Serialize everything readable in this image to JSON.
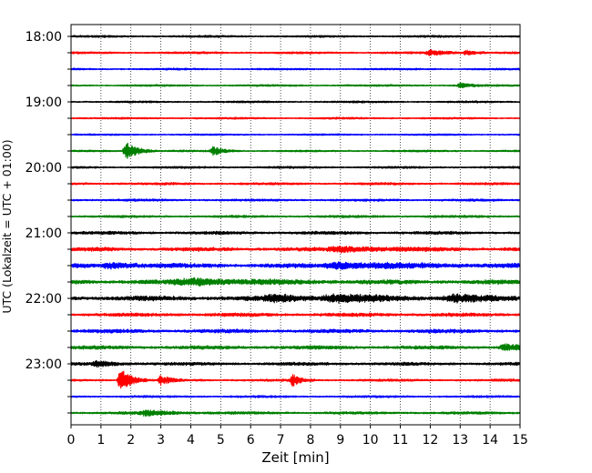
{
  "chart_data": {
    "type": "line",
    "title": "",
    "xlabel": "Zeit  [min]",
    "ylabel": "UTC (Lokalzeit = UTC + 01:00)",
    "xlim": [
      0,
      15
    ],
    "x_ticks": [
      "0",
      "1",
      "2",
      "3",
      "4",
      "5",
      "6",
      "7",
      "8",
      "9",
      "10",
      "11",
      "12",
      "13",
      "14",
      "15"
    ],
    "y_tick_labels": [
      "18:00",
      "19:00",
      "20:00",
      "21:00",
      "22:00",
      "23:00"
    ],
    "grid": "vertical dotted",
    "legend": "none",
    "trace_interval_min": 15,
    "trace_colors": [
      "#000000",
      "#ff0000",
      "#0000ff",
      "#008000"
    ],
    "traces": [
      {
        "start": "18:00",
        "color": "#000000",
        "noise": 0.9
      },
      {
        "start": "18:15",
        "color": "#ff0000",
        "noise": 0.9,
        "events": [
          {
            "t": 12.0,
            "amp": 2.5,
            "dur": 0.6
          },
          {
            "t": 13.2,
            "amp": 2.5,
            "dur": 0.3
          }
        ]
      },
      {
        "start": "18:30",
        "color": "#0000ff",
        "noise": 0.8
      },
      {
        "start": "18:45",
        "color": "#008000",
        "noise": 0.8,
        "events": [
          {
            "t": 13.0,
            "amp": 2.5,
            "dur": 0.3
          }
        ]
      },
      {
        "start": "19:00",
        "color": "#000000",
        "noise": 0.8
      },
      {
        "start": "19:15",
        "color": "#ff0000",
        "noise": 0.8
      },
      {
        "start": "19:30",
        "color": "#0000ff",
        "noise": 0.7
      },
      {
        "start": "19:45",
        "color": "#008000",
        "noise": 0.8,
        "events": [
          {
            "t": 1.85,
            "amp": 10,
            "dur": 0.35
          },
          {
            "t": 4.75,
            "amp": 5,
            "dur": 0.3
          }
        ]
      },
      {
        "start": "20:00",
        "color": "#000000",
        "noise": 0.9
      },
      {
        "start": "20:15",
        "color": "#ff0000",
        "noise": 1.0
      },
      {
        "start": "20:30",
        "color": "#0000ff",
        "noise": 1.0
      },
      {
        "start": "20:45",
        "color": "#008000",
        "noise": 1.0
      },
      {
        "start": "21:00",
        "color": "#000000",
        "noise": 1.3
      },
      {
        "start": "21:15",
        "color": "#ff0000",
        "noise": 1.6,
        "events": [
          {
            "t": 9.0,
            "amp": 2.5,
            "dur": 1.5
          }
        ]
      },
      {
        "start": "21:30",
        "color": "#0000ff",
        "noise": 1.8,
        "events": [
          {
            "t": 1.3,
            "amp": 3,
            "dur": 0.8
          },
          {
            "t": 9.0,
            "amp": 3,
            "dur": 2.0
          }
        ]
      },
      {
        "start": "21:45",
        "color": "#008000",
        "noise": 1.8,
        "events": [
          {
            "t": 4.0,
            "amp": 3,
            "dur": 2.0
          }
        ]
      },
      {
        "start": "22:00",
        "color": "#000000",
        "noise": 2.0,
        "events": [
          {
            "t": 6.8,
            "amp": 3,
            "dur": 1.2
          },
          {
            "t": 8.8,
            "amp": 3,
            "dur": 1.5
          },
          {
            "t": 12.8,
            "amp": 3,
            "dur": 1.2
          }
        ]
      },
      {
        "start": "22:15",
        "color": "#ff0000",
        "noise": 1.5
      },
      {
        "start": "22:30",
        "color": "#0000ff",
        "noise": 1.6
      },
      {
        "start": "22:45",
        "color": "#008000",
        "noise": 1.5,
        "events": [
          {
            "t": 14.5,
            "amp": 3,
            "dur": 0.6
          }
        ]
      },
      {
        "start": "23:00",
        "color": "#000000",
        "noise": 1.3,
        "events": [
          {
            "t": 0.9,
            "amp": 2.5,
            "dur": 0.6
          }
        ]
      },
      {
        "start": "23:15",
        "color": "#ff0000",
        "noise": 1.0,
        "events": [
          {
            "t": 1.65,
            "amp": 14,
            "dur": 0.3
          },
          {
            "t": 3.0,
            "amp": 5,
            "dur": 0.25
          },
          {
            "t": 7.4,
            "amp": 6,
            "dur": 0.25
          }
        ]
      },
      {
        "start": "23:30",
        "color": "#0000ff",
        "noise": 0.9
      },
      {
        "start": "23:45",
        "color": "#008000",
        "noise": 1.1,
        "events": [
          {
            "t": 2.5,
            "amp": 2.5,
            "dur": 0.8
          }
        ]
      }
    ]
  }
}
